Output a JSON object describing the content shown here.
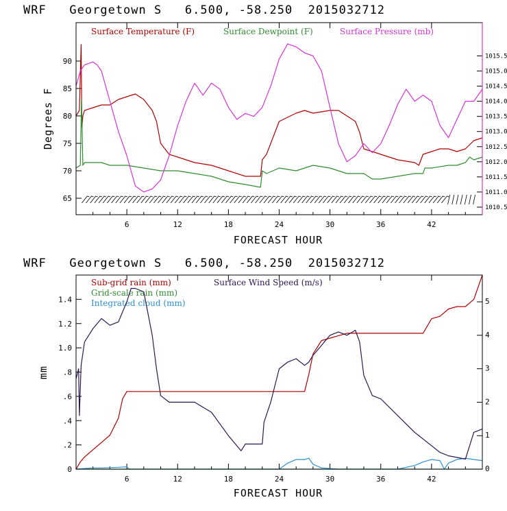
{
  "chart_data": [
    {
      "type": "line",
      "title": "WRF   Georgetown S   6.500, -58.250  2015032712",
      "xlabel": "FORECAST HOUR",
      "ylabel": "Degrees F",
      "xlim": [
        0,
        48
      ],
      "ylim": [
        62,
        97
      ],
      "y2lim": [
        1010.25,
        1016.6
      ],
      "x_ticks": [
        6,
        12,
        18,
        24,
        30,
        36,
        42
      ],
      "x_tick_labels": [
        "6",
        "12",
        "18",
        "24",
        "30",
        "36",
        "42"
      ],
      "y_ticks": [
        65,
        70,
        75,
        80,
        85,
        90
      ],
      "y_tick_labels": [
        "65",
        "70",
        "75",
        "80",
        "85",
        "90"
      ],
      "y2_ticks": [
        1010.5,
        1011.0,
        1011.5,
        1012.0,
        1012.5,
        1013.0,
        1013.5,
        1014.0,
        1014.5,
        1015.0,
        1015.5
      ],
      "y2_tick_labels": [
        "1010.5",
        "1011.0",
        "1011.5",
        "1012.0",
        "1012.5",
        "1013.0",
        "1013.5",
        "1014.0",
        "1014.5",
        "1015.0",
        "1015.5"
      ],
      "legend_position": "top",
      "series": [
        {
          "name": "Surface Temperature (F)",
          "color": "#b00000",
          "axis": "left",
          "x": [
            0,
            0.4,
            0.6,
            0.7,
            0.8,
            1,
            2,
            3,
            4,
            5,
            6,
            7,
            8,
            9,
            9.5,
            10,
            11,
            12,
            14,
            16,
            18,
            20,
            21,
            21.8,
            22,
            22.5,
            24,
            26,
            27,
            28,
            30,
            31,
            32,
            33,
            33.5,
            34,
            36,
            38,
            40,
            40.5,
            41,
            42,
            43,
            44,
            45,
            46,
            47,
            48
          ],
          "y": [
            80,
            81,
            93,
            78,
            80,
            81,
            81.5,
            82,
            82,
            83,
            83.5,
            84,
            83,
            81,
            79,
            75,
            73,
            72.5,
            71.5,
            71,
            70,
            69,
            69,
            69,
            72,
            73,
            79,
            80.5,
            81,
            80.5,
            81,
            81,
            80,
            79,
            77,
            74,
            73,
            72,
            71.5,
            71,
            73,
            73.5,
            74,
            74,
            73.5,
            74,
            75.5,
            76
          ]
        },
        {
          "name": "Surface Dewpoint (F)",
          "color": "#2e8b2e",
          "axis": "left",
          "x": [
            0,
            0.5,
            0.65,
            0.8,
            1,
            2,
            3,
            4,
            6,
            8,
            10,
            12,
            14,
            16,
            18,
            20,
            21.8,
            22,
            22.5,
            24,
            26,
            28,
            30,
            32,
            34,
            35,
            36,
            38,
            40,
            41,
            41.2,
            42,
            44,
            45,
            46,
            46.5,
            47,
            48
          ],
          "y": [
            70.5,
            71,
            83,
            71,
            71.5,
            71.5,
            71.5,
            71,
            71,
            70.5,
            70,
            70,
            69.5,
            69,
            68,
            67.5,
            67,
            70,
            69.5,
            70.5,
            70,
            71,
            70.5,
            69.5,
            69.5,
            68.5,
            68.5,
            69,
            69.5,
            69.5,
            70.5,
            70.5,
            71,
            71,
            71.5,
            72.5,
            72,
            72.5
          ]
        },
        {
          "name": "Surface Pressure (mb)",
          "color": "#d633d6",
          "axis": "right",
          "x": [
            0,
            0.5,
            1,
            2,
            2.5,
            3,
            4,
            5,
            6,
            7,
            8,
            9,
            10,
            11,
            12,
            13,
            14,
            15,
            16,
            17,
            18,
            19,
            20,
            21,
            22,
            23,
            24,
            25,
            26,
            27,
            28,
            29,
            30,
            31,
            32,
            33,
            34,
            35,
            36,
            37,
            38,
            39,
            40,
            41,
            42,
            43,
            44,
            45,
            46,
            47,
            48
          ],
          "y": [
            1014.5,
            1015.0,
            1015.2,
            1015.3,
            1015.2,
            1015.0,
            1014.0,
            1013.0,
            1012.2,
            1011.2,
            1011.0,
            1011.1,
            1011.4,
            1012.2,
            1013.2,
            1014.0,
            1014.6,
            1014.2,
            1014.6,
            1014.4,
            1013.8,
            1013.4,
            1013.6,
            1013.5,
            1013.8,
            1014.5,
            1015.4,
            1015.9,
            1015.8,
            1015.6,
            1015.5,
            1015.0,
            1013.8,
            1012.6,
            1012.0,
            1012.2,
            1012.6,
            1012.3,
            1012.6,
            1013.2,
            1013.9,
            1014.4,
            1014.0,
            1014.2,
            1014.0,
            1013.2,
            1012.8,
            1013.4,
            1014.0,
            1014.0,
            1014.4
          ]
        }
      ]
    },
    {
      "type": "line",
      "title": "WRF   Georgetown S   6.500, -58.250  2015032712",
      "xlabel": "FORECAST HOUR",
      "ylabel": "mm",
      "xlim": [
        0,
        48
      ],
      "ylim": [
        0,
        1.6
      ],
      "y2lim": [
        0,
        5.8
      ],
      "x_ticks": [
        6,
        12,
        18,
        24,
        30,
        36,
        42
      ],
      "x_tick_labels": [
        "6",
        "12",
        "18",
        "24",
        "30",
        "36",
        "42"
      ],
      "y_ticks": [
        0,
        0.2,
        0.4,
        0.6,
        0.8,
        1.0,
        1.2,
        1.4
      ],
      "y_tick_labels": [
        "0",
        ".2",
        ".4",
        ".6",
        ".8",
        "1.0",
        "1.2",
        "1.4"
      ],
      "y2_ticks": [
        0,
        1,
        2,
        3,
        4,
        5
      ],
      "y2_tick_labels": [
        "0",
        "1",
        "2",
        "3",
        "4",
        "5"
      ],
      "legend_position": "top",
      "series": [
        {
          "name": "Sub-grid rain (mm)",
          "color": "#b00000",
          "axis": "left",
          "x": [
            0,
            0.5,
            1,
            2,
            3,
            4,
            5,
            5.5,
            6,
            7,
            10,
            15,
            20,
            25,
            27,
            27.5,
            28,
            29,
            30,
            31,
            32,
            33,
            35,
            40,
            41,
            41.5,
            42,
            43,
            44,
            45,
            46,
            47,
            48
          ],
          "y": [
            0,
            0.06,
            0.1,
            0.16,
            0.22,
            0.28,
            0.42,
            0.58,
            0.64,
            0.64,
            0.64,
            0.64,
            0.64,
            0.64,
            0.64,
            0.78,
            0.95,
            1.06,
            1.08,
            1.1,
            1.12,
            1.12,
            1.12,
            1.12,
            1.12,
            1.18,
            1.24,
            1.26,
            1.32,
            1.34,
            1.34,
            1.4,
            1.6
          ]
        },
        {
          "name": "Grid-scale rain (mm)",
          "color": "#2e8b2e",
          "axis": "left",
          "x": [
            0,
            48
          ],
          "y": [
            0,
            0
          ]
        },
        {
          "name": "Integrated cloud (mm)",
          "color": "#2d8fd0",
          "axis": "left",
          "x": [
            0,
            2,
            3,
            5,
            6,
            6.3,
            7,
            24,
            25,
            26,
            27,
            27.5,
            28,
            29,
            31,
            32,
            38,
            40,
            41,
            42,
            43,
            43.5,
            44,
            45,
            46,
            47,
            48
          ],
          "y": [
            0,
            0.01,
            0.01,
            0.015,
            0.02,
            0,
            0,
            0,
            0.05,
            0.08,
            0.08,
            0.09,
            0.04,
            0.01,
            0,
            0,
            0,
            0.03,
            0.06,
            0.08,
            0.07,
            0.0,
            0.05,
            0.08,
            0.09,
            0.08,
            0.07
          ]
        },
        {
          "name": "Surface Wind Speed (m/s)",
          "color": "#2b1550",
          "axis": "right",
          "x": [
            0,
            0.3,
            0.4,
            0.5,
            0.6,
            1,
            2,
            3,
            3.5,
            4,
            5,
            6,
            6.5,
            7,
            8,
            9,
            9.5,
            10,
            11,
            12,
            14,
            16,
            18,
            19.5,
            20,
            22,
            22.2,
            23,
            24,
            25,
            26,
            27,
            27.5,
            28,
            29,
            30,
            31,
            32,
            33,
            33.5,
            34,
            35,
            36,
            38,
            40,
            42,
            43,
            44,
            45,
            46,
            47,
            48
          ],
          "y": [
            2.7,
            3.0,
            1.6,
            2.4,
            3.1,
            3.8,
            4.2,
            4.5,
            4.4,
            4.3,
            4.4,
            5.0,
            5.4,
            5.4,
            5.3,
            4.0,
            3.0,
            2.2,
            2.0,
            2.0,
            2.0,
            1.7,
            1.0,
            0.55,
            0.75,
            0.75,
            1.4,
            2.0,
            3.0,
            3.2,
            3.3,
            3.1,
            3.2,
            3.4,
            3.7,
            4.0,
            4.1,
            4.0,
            4.15,
            3.8,
            2.8,
            2.2,
            2.1,
            1.6,
            1.1,
            0.7,
            0.5,
            0.4,
            0.35,
            0.3,
            1.1,
            1.2
          ]
        }
      ]
    }
  ]
}
